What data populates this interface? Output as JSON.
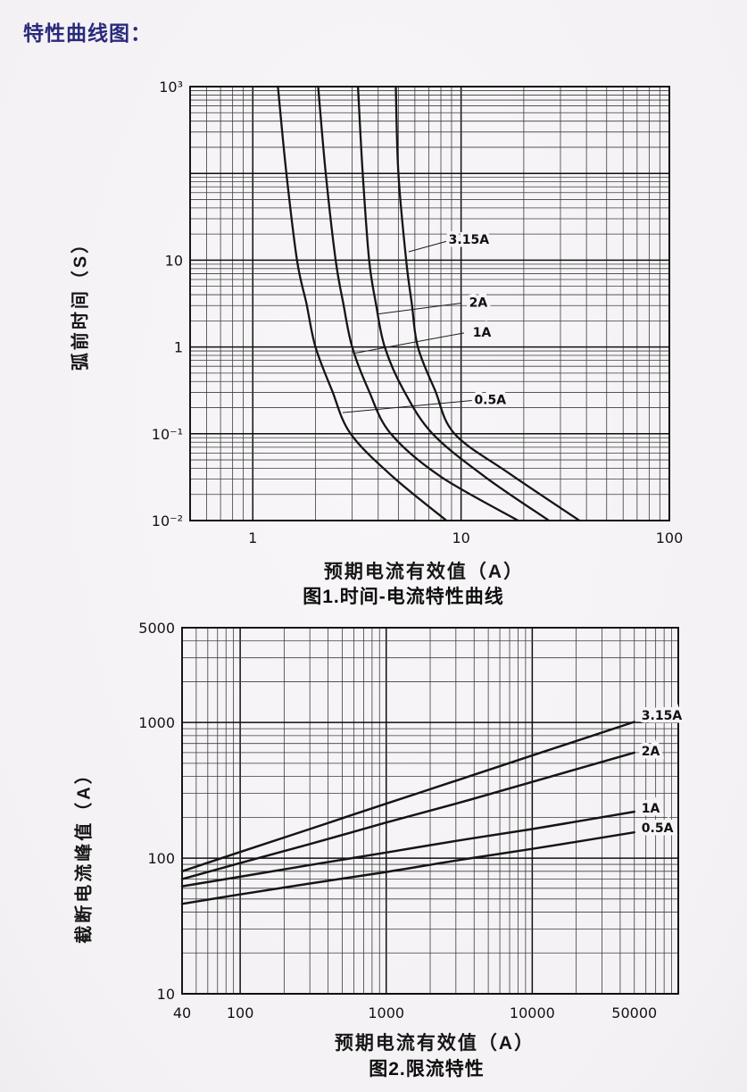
{
  "page": {
    "title": "特性曲线图：",
    "ink_color": "#1a1a1a",
    "title_color": "#2a2a7c",
    "paper_color": "#f6f4f6"
  },
  "chart_data": [
    {
      "id": "chart1",
      "type": "line",
      "x_scale": "log",
      "y_scale": "log",
      "title": "图1.时间-电流特性曲线",
      "xlabel": "预期电流有效值（A）",
      "ylabel": "弧前时间（S）",
      "xlim": [
        0.5,
        100
      ],
      "ylim": [
        0.01,
        1000
      ],
      "grid": "log-minor-and-major",
      "x_ticks": [
        {
          "v": 1,
          "label": "1"
        },
        {
          "v": 10,
          "label": "10"
        },
        {
          "v": 100,
          "label": "100"
        }
      ],
      "y_ticks": [
        {
          "v": 1000,
          "label": "10³"
        },
        {
          "v": 10,
          "label": "10"
        },
        {
          "v": 1,
          "label": "1"
        },
        {
          "v": 0.1,
          "label": "10⁻¹"
        },
        {
          "v": 0.01,
          "label": "10⁻²"
        }
      ],
      "series": [
        {
          "name": "0.5A",
          "points": [
            [
              1.32,
              1000
            ],
            [
              1.45,
              100
            ],
            [
              1.63,
              10
            ],
            [
              1.81,
              3.16
            ],
            [
              2.0,
              1
            ],
            [
              2.4,
              0.316
            ],
            [
              2.95,
              0.1
            ],
            [
              4.7,
              0.032
            ],
            [
              8.5,
              0.01
            ]
          ]
        },
        {
          "name": "1A",
          "points": [
            [
              2.06,
              1000
            ],
            [
              2.24,
              100
            ],
            [
              2.5,
              10
            ],
            [
              2.72,
              3.16
            ],
            [
              3.0,
              1
            ],
            [
              3.6,
              0.316
            ],
            [
              4.6,
              0.1
            ],
            [
              8.0,
              0.032
            ],
            [
              18.8,
              0.01
            ]
          ]
        },
        {
          "name": "2A",
          "points": [
            [
              3.2,
              1000
            ],
            [
              3.37,
              100
            ],
            [
              3.62,
              10
            ],
            [
              3.9,
              3.16
            ],
            [
              4.3,
              1
            ],
            [
              5.3,
              0.316
            ],
            [
              7.3,
              0.1
            ],
            [
              13.0,
              0.032
            ],
            [
              26.4,
              0.01
            ]
          ]
        },
        {
          "name": "3.15A",
          "points": [
            [
              4.86,
              1000
            ],
            [
              5.0,
              100
            ],
            [
              5.45,
              10
            ],
            [
              5.8,
              3.16
            ],
            [
              6.2,
              1
            ],
            [
              7.5,
              0.316
            ],
            [
              9.3,
              0.1
            ],
            [
              17.0,
              0.035
            ],
            [
              37.0,
              0.01
            ]
          ]
        }
      ],
      "annotations": [
        {
          "label": "3.15A",
          "label_at": [
            10.9,
            15.5
          ],
          "leader_to": [
            5.6,
            12.5
          ]
        },
        {
          "label": "2A",
          "label_at": [
            12.1,
            2.9
          ],
          "leader_to": [
            4.0,
            2.4
          ]
        },
        {
          "label": "1A",
          "label_at": [
            12.6,
            1.32
          ],
          "leader_to": [
            3.1,
            0.85
          ]
        },
        {
          "label": "0.5A",
          "label_at": [
            13.8,
            0.22
          ],
          "leader_to": [
            2.7,
            0.175
          ]
        }
      ]
    },
    {
      "id": "chart2",
      "type": "line",
      "x_scale": "log",
      "y_scale": "log",
      "title": "图2.限流特性",
      "xlabel": "预期电流有效值（A）",
      "ylabel": "截断电流峰值（A）",
      "xlim": [
        40,
        100000
      ],
      "ylim": [
        10,
        5000
      ],
      "grid": "log-minor-and-major",
      "x_ticks": [
        {
          "v": 40,
          "label": "40"
        },
        {
          "v": 100,
          "label": "100"
        },
        {
          "v": 1000,
          "label": "1000"
        },
        {
          "v": 10000,
          "label": "10000"
        },
        {
          "v": 50000,
          "label": "50000"
        }
      ],
      "y_ticks": [
        {
          "v": 5000,
          "label": "5000"
        },
        {
          "v": 1000,
          "label": "1000"
        },
        {
          "v": 100,
          "label": "100"
        },
        {
          "v": 10,
          "label": "10"
        }
      ],
      "series": [
        {
          "name": "3.15A",
          "points": [
            [
              40,
              80
            ],
            [
              100,
              111
            ],
            [
              300,
              164
            ],
            [
              1000,
              252
            ],
            [
              3000,
              372
            ],
            [
              10000,
              571
            ],
            [
              50000,
              1010
            ]
          ]
        },
        {
          "name": "2A",
          "points": [
            [
              40,
              70
            ],
            [
              100,
              92
            ],
            [
              300,
              127
            ],
            [
              1000,
              183
            ],
            [
              3000,
              252
            ],
            [
              10000,
              365
            ],
            [
              50000,
              600
            ]
          ]
        },
        {
          "name": "1A",
          "points": [
            [
              40,
              62
            ],
            [
              100,
              73
            ],
            [
              300,
              89
            ],
            [
              1000,
              110
            ],
            [
              3000,
              134
            ],
            [
              10000,
              164
            ],
            [
              50000,
              220
            ]
          ]
        },
        {
          "name": "0.5A",
          "points": [
            [
              40,
              46
            ],
            [
              100,
              54
            ],
            [
              300,
              65
            ],
            [
              1000,
              79
            ],
            [
              3000,
              96
            ],
            [
              10000,
              117
            ],
            [
              50000,
              155
            ]
          ]
        }
      ],
      "annotations": [
        {
          "label": "3.15A",
          "label_at": [
            56000,
            1050
          ]
        },
        {
          "label": "2A",
          "label_at": [
            56000,
            573
          ]
        },
        {
          "label": "1A",
          "label_at": [
            56000,
            217
          ]
        },
        {
          "label": "0.5A",
          "label_at": [
            56000,
            155
          ]
        }
      ]
    }
  ],
  "chart1_text": {
    "ylabel": "弧前时间（S）",
    "xlabel": "预期电流有效值（A）",
    "caption": "图1.时间-电流特性曲线"
  },
  "chart2_text": {
    "ylabel": "截断电流峰值（A）",
    "xlabel": "预期电流有效值（A）",
    "caption": "图2.限流特性"
  }
}
